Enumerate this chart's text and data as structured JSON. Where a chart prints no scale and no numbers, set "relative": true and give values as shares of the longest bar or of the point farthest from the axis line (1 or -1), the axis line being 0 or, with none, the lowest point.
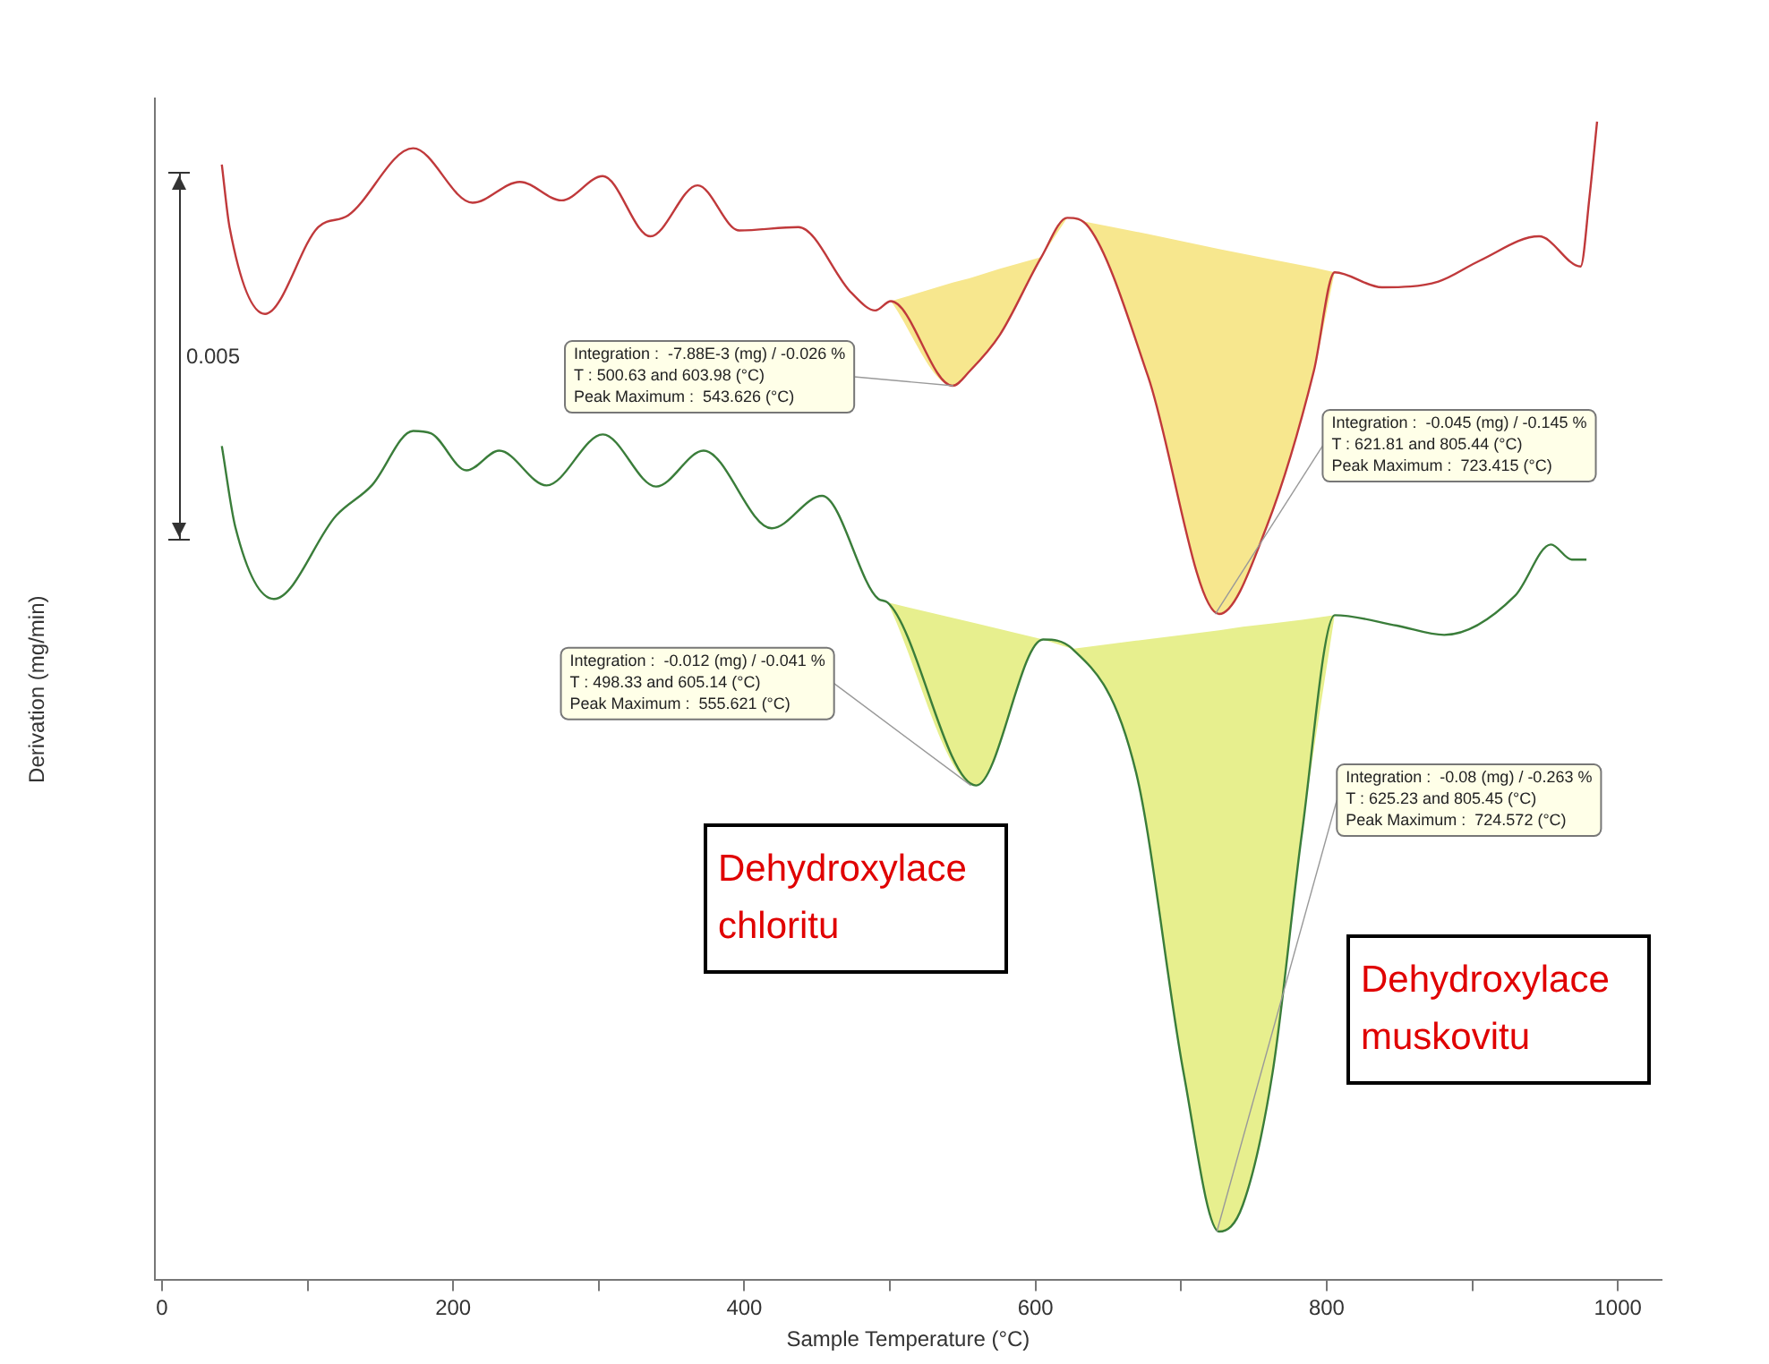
{
  "chart_data": {
    "type": "line",
    "xlabel": "Sample Temperature (°C)",
    "ylabel": "Derivation (mg/min)",
    "relative": true,
    "x": [
      41.1,
      46.4,
      70.8,
      107.4,
      127.8,
      172.5,
      213.3,
      245.8,
      274.4,
      302.8,
      335.4,
      367.9,
      396.5,
      437.1,
      473.7,
      490,
      500.63,
      543,
      555,
      575.5,
      603.98,
      621.81,
      636.5,
      677.3,
      726.1,
      758.6,
      791.2,
      805.44,
      838,
      876.7,
      905.1,
      945.9,
      974.4,
      980.5,
      985.7
    ],
    "series": [
      {
        "color": "#c0393b",
        "values": [
          0.963,
          0.909,
          0.834,
          0.909,
          0.919,
          0.977,
          0.93,
          0.948,
          0.932,
          0.953,
          0.901,
          0.945,
          0.906,
          0.909,
          0.852,
          0.837,
          0.845,
          0.772,
          0.785,
          0.816,
          0.883,
          0.917,
          0.909,
          0.78,
          0.575,
          0.65,
          0.785,
          0.87,
          0.857,
          0.862,
          0.88,
          0.901,
          0.875,
          0.935,
          1.0
        ],
        "lower": [
          null,
          null,
          null,
          null,
          null,
          null,
          null,
          null,
          null,
          null,
          null,
          null,
          null,
          null,
          null,
          null,
          0.845,
          0.772,
          0.785,
          0.816,
          0.883,
          0.917,
          0.909,
          0.78,
          0.575,
          0.65,
          0.785,
          0.87,
          null,
          null,
          null,
          null,
          null,
          null,
          null
        ],
        "upper": [
          null,
          null,
          null,
          null,
          null,
          null,
          null,
          null,
          null,
          null,
          null,
          null,
          null,
          null,
          null,
          null,
          0.845,
          0.861,
          0.865,
          0.873,
          0.883,
          0.917,
          0.913,
          0.903,
          0.89,
          0.882,
          0.874,
          0.87,
          null,
          null,
          null,
          null,
          null,
          null,
          null
        ]
      },
      {
        "color": "#3a7d3a",
        "x": [
          41.1,
          50.4,
          76.9,
          119.7,
          144.1,
          172.5,
          184.7,
          209.2,
          231.6,
          264.1,
          302.8,
          339.4,
          372,
          418.8,
          453.4,
          492.1,
          498.33,
          559.2,
          605.14,
          625.23,
          669.1,
          701.7,
          726.1,
          742.4,
          762.8,
          783,
          805.45,
          848.2,
          880.7,
          929.5,
          954,
          968.3,
          978.4
        ],
        "values": [
          0.72,
          0.65,
          0.588,
          0.66,
          0.686,
          0.733,
          0.731,
          0.699,
          0.716,
          0.686,
          0.73,
          0.685,
          0.716,
          0.649,
          0.677,
          0.588,
          0.585,
          0.427,
          0.553,
          0.545,
          0.438,
          0.179,
          0.042,
          0.065,
          0.179,
          0.386,
          0.574,
          0.565,
          0.557,
          0.591,
          0.635,
          0.622,
          0.622
        ],
        "lower": [
          null,
          null,
          null,
          null,
          null,
          null,
          null,
          null,
          null,
          null,
          null,
          null,
          null,
          null,
          null,
          null,
          0.585,
          0.427,
          0.553,
          0.545,
          0.438,
          0.179,
          0.042,
          0.065,
          0.179,
          0.386,
          0.574,
          null,
          null,
          null,
          null,
          null,
          null
        ],
        "upper": [
          null,
          null,
          null,
          null,
          null,
          null,
          null,
          null,
          null,
          null,
          null,
          null,
          null,
          null,
          null,
          null,
          0.585,
          0.567,
          0.553,
          0.545,
          0.552,
          0.557,
          0.561,
          0.564,
          0.567,
          0.57,
          0.574,
          null,
          null,
          null,
          null,
          null,
          null
        ]
      }
    ],
    "xlim": [
      -5,
      1030
    ],
    "xticks": [
      0,
      {
        "value": 100,
        "label": null
      },
      200,
      {
        "value": 300,
        "label": null
      },
      400,
      {
        "value": 500,
        "label": null
      },
      600,
      {
        "value": 700,
        "label": null
      },
      800,
      {
        "value": 900,
        "label": null
      },
      1000
    ],
    "tick_labels": "x",
    "grid": false,
    "legend": false,
    "marker": "none",
    "line_style": "solid",
    "annotations": [
      {
        "text": "Integration :  -7.88E-3 (mg) / -0.026 %\nT : 500.63 and 603.98 (°C)\nPeak Maximum :  543.626 (°C)",
        "x": 543.626,
        "y": 0.772
      },
      {
        "text": "Integration :  -0.045 (mg) / -0.145 %\nT : 621.81 and 805.44 (°C)\nPeak Maximum :  723.415 (°C)",
        "x": 723.415,
        "y": 0.575
      },
      {
        "text": "Integration :  -0.012 (mg) / -0.041 %\nT : 498.33 and 605.14 (°C)\nPeak Maximum :  555.621 (°C)",
        "x": 555.621,
        "y": 0.427
      },
      {
        "text": "Integration :  -0.08 (mg) / -0.263 %\nT : 625.23 and 805.45 (°C)\nPeak Maximum :  724.572 (°C)",
        "x": 724.572,
        "y": 0.042
      },
      "0.005",
      "Dehydroxylace chloritu",
      "Dehydroxylace muskovitu"
    ]
  }
}
